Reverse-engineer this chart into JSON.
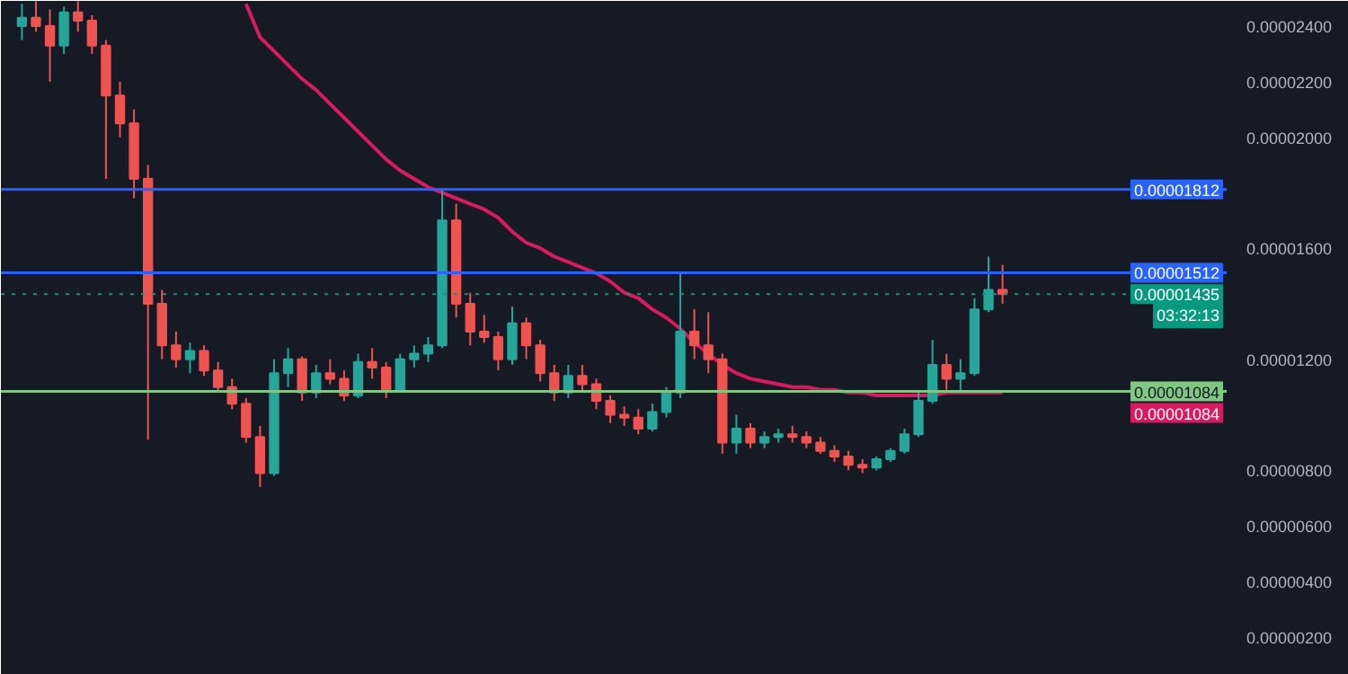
{
  "chart_data": {
    "type": "candlestick",
    "categories": [
      null,
      null,
      null,
      null,
      null,
      null,
      null,
      null,
      null,
      null,
      null,
      null,
      null,
      null,
      null,
      null,
      null,
      null,
      null,
      null,
      null,
      null,
      null,
      null,
      null,
      null,
      null,
      null,
      null,
      null,
      null,
      null,
      null,
      null,
      null,
      null,
      null,
      null,
      null,
      null,
      null,
      null,
      null,
      null,
      null,
      null,
      null,
      null,
      null,
      null,
      null,
      null,
      null,
      null,
      null,
      null,
      null,
      null,
      null,
      null,
      null,
      null,
      null,
      null,
      null,
      null,
      null,
      null,
      null,
      null,
      null
    ],
    "ohlc": [
      [
        2.4e-05,
        2.48e-05,
        2.35e-05,
        2.43e-05
      ],
      [
        2.43e-05,
        2.49e-05,
        2.38e-05,
        2.4e-05
      ],
      [
        2.4e-05,
        2.46e-05,
        2.2e-05,
        2.33e-05
      ],
      [
        2.33e-05,
        2.47e-05,
        2.3e-05,
        2.45e-05
      ],
      [
        2.45e-05,
        2.49e-05,
        2.38e-05,
        2.42e-05
      ],
      [
        2.42e-05,
        2.44e-05,
        2.3e-05,
        2.33e-05
      ],
      [
        2.33e-05,
        2.35e-05,
        1.85e-05,
        2.15e-05
      ],
      [
        2.15e-05,
        2.2e-05,
        2e-05,
        2.05e-05
      ],
      [
        2.05e-05,
        2.1e-05,
        1.78e-05,
        1.85e-05
      ],
      [
        1.85e-05,
        1.9e-05,
        9.1e-06,
        1.4e-05
      ],
      [
        1.4e-05,
        1.45e-05,
        1.2e-05,
        1.25e-05
      ],
      [
        1.25e-05,
        1.3e-05,
        1.17e-05,
        1.2e-05
      ],
      [
        1.2e-05,
        1.26e-05,
        1.15e-05,
        1.23e-05
      ],
      [
        1.23e-05,
        1.25e-05,
        1.14e-05,
        1.16e-05
      ],
      [
        1.16e-05,
        1.19e-05,
        1.08e-05,
        1.1e-05
      ],
      [
        1.1e-05,
        1.13e-05,
        1.02e-05,
        1.04e-05
      ],
      [
        1.04e-05,
        1.06e-05,
        9e-06,
        9.2e-06
      ],
      [
        9.2e-06,
        9.6e-06,
        7.4e-06,
        7.9e-06
      ],
      [
        7.9e-06,
        1.2e-05,
        7.8e-06,
        1.15e-05
      ],
      [
        1.15e-05,
        1.24e-05,
        1.1e-05,
        1.2e-05
      ],
      [
        1.2e-05,
        1.21e-05,
        1.05e-05,
        1.08e-05
      ],
      [
        1.08e-05,
        1.18e-05,
        1.06e-05,
        1.15e-05
      ],
      [
        1.15e-05,
        1.2e-05,
        1.11e-05,
        1.13e-05
      ],
      [
        1.13e-05,
        1.16e-05,
        1.05e-05,
        1.07e-05
      ],
      [
        1.07e-05,
        1.22e-05,
        1.06e-05,
        1.19e-05
      ],
      [
        1.19e-05,
        1.24e-05,
        1.13e-05,
        1.17e-05
      ],
      [
        1.17e-05,
        1.19e-05,
        1.06e-05,
        1.09e-05
      ],
      [
        1.09e-05,
        1.22e-05,
        1.08e-05,
        1.2e-05
      ],
      [
        1.2e-05,
        1.25e-05,
        1.17e-05,
        1.22e-05
      ],
      [
        1.22e-05,
        1.28e-05,
        1.19e-05,
        1.25e-05
      ],
      [
        1.25e-05,
        1.812e-05,
        1.24e-05,
        1.7e-05
      ],
      [
        1.7e-05,
        1.76e-05,
        1.35e-05,
        1.4e-05
      ],
      [
        1.4e-05,
        1.44e-05,
        1.25e-05,
        1.3e-05
      ],
      [
        1.3e-05,
        1.36e-05,
        1.26e-05,
        1.28e-05
      ],
      [
        1.28e-05,
        1.3e-05,
        1.16e-05,
        1.2e-05
      ],
      [
        1.2e-05,
        1.39e-05,
        1.18e-05,
        1.33e-05
      ],
      [
        1.33e-05,
        1.35e-05,
        1.2e-05,
        1.25e-05
      ],
      [
        1.25e-05,
        1.27e-05,
        1.12e-05,
        1.15e-05
      ],
      [
        1.15e-05,
        1.18e-05,
        1.05e-05,
        1.08e-05
      ],
      [
        1.08e-05,
        1.18e-05,
        1.06e-05,
        1.14e-05
      ],
      [
        1.14e-05,
        1.18e-05,
        1.08e-05,
        1.11e-05
      ],
      [
        1.11e-05,
        1.13e-05,
        1.02e-05,
        1.05e-05
      ],
      [
        1.05e-05,
        1.07e-05,
        9.7e-06,
        1e-05
      ],
      [
        1e-05,
        1.03e-05,
        9.6e-06,
        9.9e-06
      ],
      [
        9.9e-06,
        1.02e-05,
        9.3e-06,
        9.5e-06
      ],
      [
        9.5e-06,
        1.04e-05,
        9.4e-06,
        1.01e-05
      ],
      [
        1.01e-05,
        1.1e-05,
        9.9e-06,
        1.08e-05
      ],
      [
        1.08e-05,
        1.512e-05,
        1.06e-05,
        1.3e-05
      ],
      [
        1.3e-05,
        1.38e-05,
        1.2e-05,
        1.25e-05
      ],
      [
        1.25e-05,
        1.37e-05,
        1.15e-05,
        1.2e-05
      ],
      [
        1.2e-05,
        1.22e-05,
        8.6e-06,
        9e-06
      ],
      [
        9e-06,
        1e-05,
        8.6e-06,
        9.5e-06
      ],
      [
        9.5e-06,
        9.7e-06,
        8.8e-06,
        9e-06
      ],
      [
        9e-06,
        9.4e-06,
        8.8e-06,
        9.2e-06
      ],
      [
        9.2e-06,
        9.5e-06,
        9e-06,
        9.3e-06
      ],
      [
        9.3e-06,
        9.6e-06,
        9e-06,
        9.2e-06
      ],
      [
        9.2e-06,
        9.4e-06,
        8.8e-06,
        9e-06
      ],
      [
        9e-06,
        9.2e-06,
        8.6e-06,
        8.7e-06
      ],
      [
        8.7e-06,
        8.9e-06,
        8.3e-06,
        8.5e-06
      ],
      [
        8.5e-06,
        8.7e-06,
        8e-06,
        8.2e-06
      ],
      [
        8.2e-06,
        8.4e-06,
        7.9e-06,
        8.1e-06
      ],
      [
        8.1e-06,
        8.5e-06,
        8e-06,
        8.4e-06
      ],
      [
        8.4e-06,
        8.8e-06,
        8.3e-06,
        8.7e-06
      ],
      [
        8.7e-06,
        9.5e-06,
        8.6e-06,
        9.3e-06
      ],
      [
        9.3e-06,
        1.08e-05,
        9.2e-06,
        1.05e-05
      ],
      [
        1.05e-05,
        1.27e-05,
        1.04e-05,
        1.18e-05
      ],
      [
        1.18e-05,
        1.22e-05,
        1.09e-05,
        1.13e-05
      ],
      [
        1.13e-05,
        1.2e-05,
        1.08e-05,
        1.15e-05
      ],
      [
        1.15e-05,
        1.42e-05,
        1.14e-05,
        1.38e-05
      ],
      [
        1.38e-05,
        1.57e-05,
        1.37e-05,
        1.45e-05
      ],
      [
        1.45e-05,
        1.54e-05,
        1.4e-05,
        1.435e-05
      ]
    ],
    "colors": [
      "#26a69a",
      "#ef5350",
      "#ef5350",
      "#26a69a",
      "#ef5350",
      "#ef5350",
      "#ef5350",
      "#ef5350",
      "#ef5350",
      "#ef5350",
      "#ef5350",
      "#ef5350",
      "#26a69a",
      "#ef5350",
      "#ef5350",
      "#ef5350",
      "#ef5350",
      "#ef5350",
      "#26a69a",
      "#26a69a",
      "#ef5350",
      "#26a69a",
      "#ef5350",
      "#ef5350",
      "#26a69a",
      "#ef5350",
      "#ef5350",
      "#26a69a",
      "#26a69a",
      "#26a69a",
      "#26a69a",
      "#ef5350",
      "#ef5350",
      "#ef5350",
      "#ef5350",
      "#26a69a",
      "#ef5350",
      "#ef5350",
      "#ef5350",
      "#26a69a",
      "#ef5350",
      "#ef5350",
      "#ef5350",
      "#ef5350",
      "#ef5350",
      "#26a69a",
      "#26a69a",
      "#26a69a",
      "#ef5350",
      "#ef5350",
      "#ef5350",
      "#26a69a",
      "#ef5350",
      "#26a69a",
      "#26a69a",
      "#ef5350",
      "#ef5350",
      "#ef5350",
      "#ef5350",
      "#ef5350",
      "#ef5350",
      "#26a69a",
      "#26a69a",
      "#26a69a",
      "#26a69a",
      "#26a69a",
      "#ef5350",
      "#26a69a",
      "#26a69a",
      "#26a69a",
      "#ef5350"
    ],
    "series": [
      {
        "type": "line",
        "color": "#d81b60",
        "values": [
          null,
          null,
          null,
          null,
          null,
          null,
          null,
          null,
          null,
          null,
          null,
          null,
          null,
          null,
          null,
          null,
          2.48e-05,
          2.36e-05,
          2.31e-05,
          2.26e-05,
          2.21e-05,
          2.17e-05,
          2.12e-05,
          2.07e-05,
          2.02e-05,
          1.97e-05,
          1.92e-05,
          1.88e-05,
          1.85e-05,
          1.82e-05,
          1.8e-05,
          1.78e-05,
          1.76e-05,
          1.74e-05,
          1.71e-05,
          1.66e-05,
          1.62e-05,
          1.6e-05,
          1.57e-05,
          1.55e-05,
          1.53e-05,
          1.51e-05,
          1.48e-05,
          1.44e-05,
          1.42e-05,
          1.38e-05,
          1.35e-05,
          1.31e-05,
          1.26e-05,
          1.22e-05,
          1.18e-05,
          1.15e-05,
          1.13e-05,
          1.12e-05,
          1.11e-05,
          1.1e-05,
          1.1e-05,
          1.09e-05,
          1.09e-05,
          1.08e-05,
          1.08e-05,
          1.07e-05,
          1.07e-05,
          1.07e-05,
          1.07e-05,
          1.07e-05,
          1.08e-05,
          1.08e-05,
          1.08e-05,
          1.08e-05,
          1.08e-05
        ]
      }
    ],
    "ylim": [
      6.3e-07,
      2.491e-05
    ],
    "yticks": [
      {
        "value": 2e-06,
        "label": "0.00000200"
      },
      {
        "value": 4e-06,
        "label": "0.00000400"
      },
      {
        "value": 6e-06,
        "label": "0.00000600"
      },
      {
        "value": 8e-06,
        "label": "0.00000800"
      },
      {
        "value": 1.2e-05,
        "label": "0.00001200"
      },
      {
        "value": 1.6e-05,
        "label": "0.00001600"
      },
      {
        "value": 2e-05,
        "label": "0.00002000"
      },
      {
        "value": 2.2e-05,
        "label": "0.00002200"
      },
      {
        "value": 2.4e-05,
        "label": "0.00002400"
      }
    ],
    "ref_lines": [
      {
        "axis": "y",
        "value": 1.812e-05,
        "label": "0.00001812",
        "color": "#2962ff"
      },
      {
        "axis": "y",
        "value": 1.512e-05,
        "label": "0.00001512",
        "color": "#2962ff"
      },
      {
        "axis": "y",
        "value": 1.435e-05,
        "label": "0.00001435",
        "color": "#089981",
        "line_style": "dotted"
      },
      {
        "axis": "y",
        "value": 1.084e-05,
        "label": "0.00001084",
        "color": "#81c784"
      }
    ],
    "annotations": [
      "03:32:13",
      {
        "text": "0.00001084",
        "y": 1.084e-05
      }
    ],
    "tick_labels": "y",
    "grid": false
  }
}
